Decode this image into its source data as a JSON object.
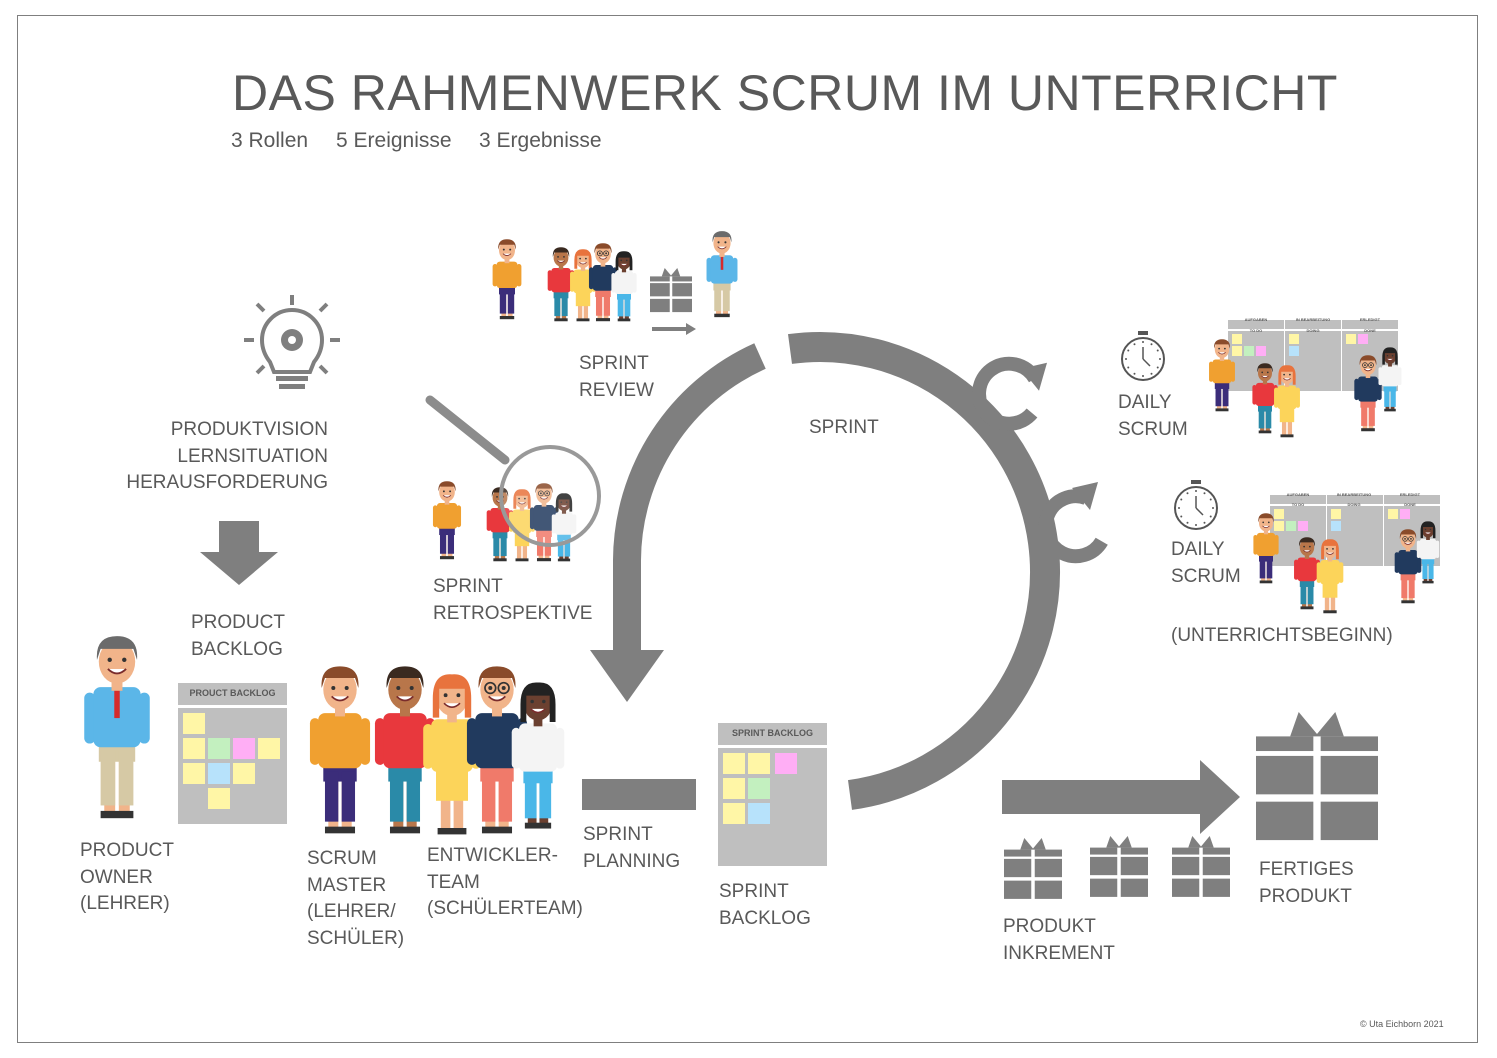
{
  "title": "DAS RAHMENWERK SCRUM IM UNTERRICHT",
  "subtitle": [
    "3 Rollen",
    "5 Ereignisse",
    "3 Ergebnisse"
  ],
  "labels": {
    "vision": [
      "PRODUKTVISION",
      "LERNSITUATION",
      "HERAUSFORDERUNG"
    ],
    "product_backlog": [
      "PRODUCT",
      "BACKLOG"
    ],
    "product_owner": [
      "PRODUCT",
      "OWNER",
      "(LEHRER)"
    ],
    "scrum_master": [
      "SCRUM",
      "MASTER",
      "(LEHRER/",
      "SCHÜLER)"
    ],
    "dev_team": [
      "ENTWICKLER-",
      "TEAM",
      "(SCHÜLERTEAM)"
    ],
    "sprint_planning": [
      "SPRINT",
      "PLANNING"
    ],
    "sprint_backlog": [
      "SPRINT",
      "BACKLOG"
    ],
    "increment": [
      "PRODUKT",
      "INKREMENT"
    ],
    "finished": [
      "FERTIGES",
      "PRODUKT"
    ],
    "review": [
      "SPRINT",
      "REVIEW"
    ],
    "retro": [
      "SPRINT",
      "RETROSPEKTIVE"
    ],
    "sprint": "SPRINT",
    "daily1": [
      "DAILY",
      "SCRUM"
    ],
    "daily2": [
      "DAILY",
      "SCRUM"
    ],
    "lesson_start": "(UNTERRICHTSBEGINN)"
  },
  "boards": {
    "product_backlog_title": "PROUCT BACKLOG",
    "sprint_backlog_title": "SPRINT BACKLOG",
    "kanban_headers": [
      "AUFGABEN",
      "IN BEARBEITUNG",
      "ERLEDIGT"
    ],
    "kanban_columns": [
      "TO DO",
      "DOING",
      "DONE"
    ]
  },
  "copyright": "© Uta Eichborn 2021",
  "colors": {
    "text": "#595959",
    "shape_grey": "#7f7f7f",
    "board_grey": "#bfbfbf",
    "note_yellow": "#fff6a6",
    "note_green": "#c3f0bf",
    "note_pink": "#ffaef5",
    "note_blue": "#b7e2fb"
  }
}
